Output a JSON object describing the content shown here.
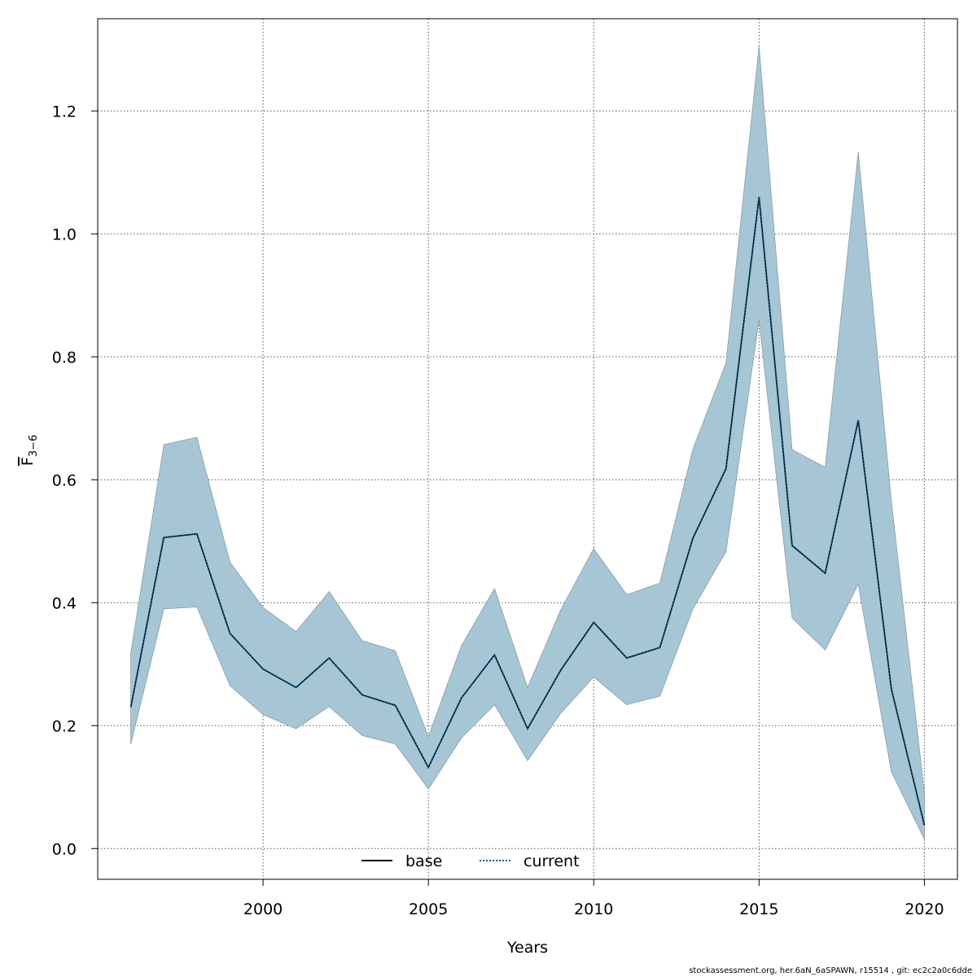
{
  "chart_data": {
    "type": "line",
    "xlabel": "Years",
    "ylabel_main": "F",
    "ylabel_sub": "3−6",
    "xlim": [
      1995,
      2021
    ],
    "ylim": [
      -0.05,
      1.35
    ],
    "x_ticks": [
      2000,
      2005,
      2010,
      2015,
      2020
    ],
    "y_ticks": [
      0.0,
      0.2,
      0.4,
      0.6,
      0.8,
      1.0,
      1.2
    ],
    "x_tick_labels": [
      "2000",
      "2005",
      "2010",
      "2015",
      "2020"
    ],
    "y_tick_labels": [
      "0.0",
      "0.2",
      "0.4",
      "0.6",
      "0.8",
      "1.0",
      "1.2"
    ],
    "grid": true,
    "legend_position": "bottom",
    "x": [
      1996,
      1997,
      1998,
      1999,
      2000,
      2001,
      2002,
      2003,
      2004,
      2005,
      2006,
      2007,
      2008,
      2009,
      2010,
      2011,
      2012,
      2013,
      2014,
      2015,
      2016,
      2017,
      2018,
      2019,
      2020
    ],
    "series": [
      {
        "name": "base",
        "style": "solid",
        "color": "#000000",
        "values": [
          0.23,
          0.506,
          0.512,
          0.35,
          0.292,
          0.262,
          0.31,
          0.25,
          0.233,
          0.132,
          0.245,
          0.315,
          0.195,
          0.29,
          0.368,
          0.31,
          0.327,
          0.505,
          0.618,
          1.06,
          0.493,
          0.448,
          0.697,
          0.26,
          0.038
        ]
      },
      {
        "name": "current",
        "style": "dotted",
        "color": "#005a8c",
        "values": [
          0.23,
          0.506,
          0.512,
          0.35,
          0.292,
          0.262,
          0.31,
          0.25,
          0.233,
          0.132,
          0.245,
          0.315,
          0.195,
          0.29,
          0.368,
          0.31,
          0.327,
          0.505,
          0.618,
          1.06,
          0.493,
          0.448,
          0.697,
          0.26,
          0.038
        ]
      }
    ],
    "band": {
      "color": "#a6c6d6",
      "lower": [
        0.17,
        0.39,
        0.393,
        0.265,
        0.218,
        0.195,
        0.231,
        0.184,
        0.17,
        0.097,
        0.18,
        0.234,
        0.143,
        0.22,
        0.279,
        0.234,
        0.248,
        0.39,
        0.483,
        0.86,
        0.375,
        0.323,
        0.43,
        0.125,
        0.015
      ],
      "upper": [
        0.318,
        0.657,
        0.669,
        0.466,
        0.392,
        0.353,
        0.418,
        0.338,
        0.322,
        0.182,
        0.33,
        0.423,
        0.262,
        0.388,
        0.488,
        0.413,
        0.432,
        0.65,
        0.79,
        1.305,
        0.649,
        0.62,
        1.133,
        0.566,
        0.09
      ]
    }
  },
  "footer": "stockassessment.org, her.6aN_6aSPAWN, r15514 , git: ec2c2a0c6dde"
}
